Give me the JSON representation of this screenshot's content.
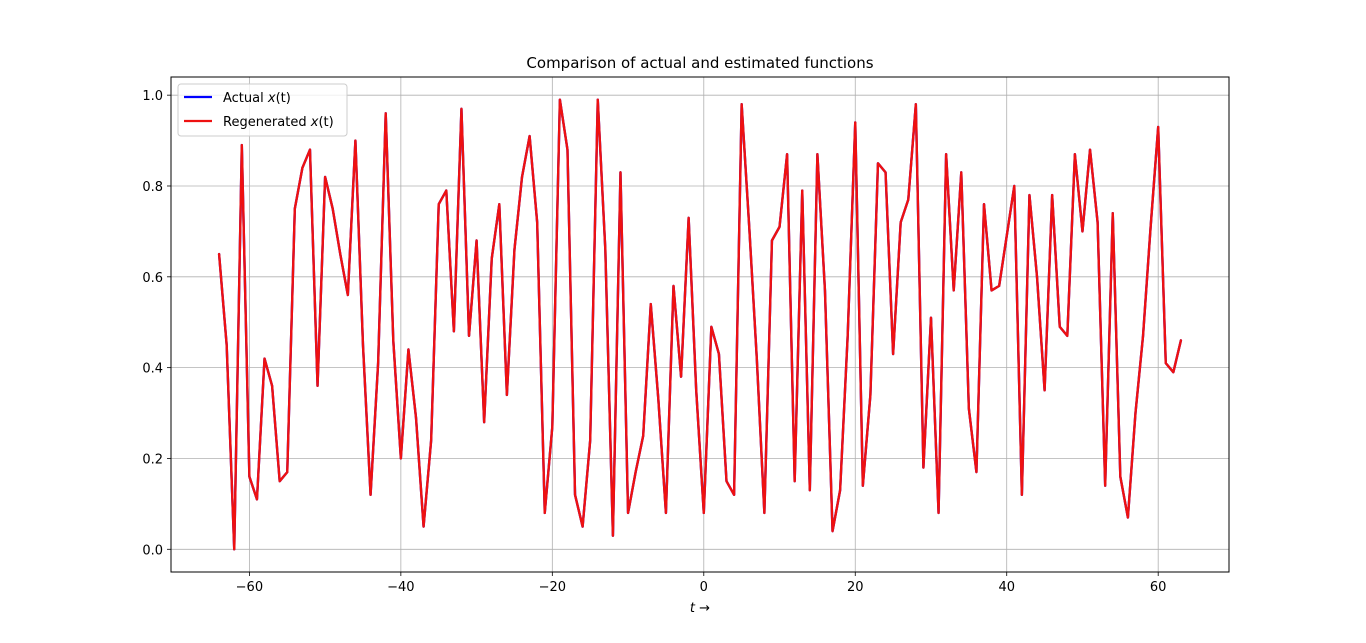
{
  "chart_data": {
    "type": "line",
    "title": "Comparison of actual and estimated functions",
    "xlabel": "t →",
    "ylabel": "",
    "xlim": [
      -70.35,
      69.35
    ],
    "ylim": [
      -0.05,
      1.04
    ],
    "xticks": [
      -60,
      -40,
      -20,
      0,
      20,
      40,
      60
    ],
    "xtick_labels": [
      "−60",
      "−40",
      "−20",
      "0",
      "20",
      "40",
      "60"
    ],
    "yticks": [
      0.0,
      0.2,
      0.4,
      0.6,
      0.8,
      1.0
    ],
    "ytick_labels": [
      "0.0",
      "0.2",
      "0.4",
      "0.6",
      "0.8",
      "1.0"
    ],
    "grid": true,
    "legend_position": "top-left",
    "x": [
      -64,
      -63,
      -62,
      -61,
      -60,
      -59,
      -58,
      -57,
      -56,
      -55,
      -54,
      -53,
      -52,
      -51,
      -50,
      -49,
      -48,
      -47,
      -46,
      -45,
      -44,
      -43,
      -42,
      -41,
      -40,
      -39,
      -38,
      -37,
      -36,
      -35,
      -34,
      -33,
      -32,
      -31,
      -30,
      -29,
      -28,
      -27,
      -26,
      -25,
      -24,
      -23,
      -22,
      -21,
      -20,
      -19,
      -18,
      -17,
      -16,
      -15,
      -14,
      -13,
      -12,
      -11,
      -10,
      -9,
      -8,
      -7,
      -6,
      -5,
      -4,
      -3,
      -2,
      -1,
      0,
      1,
      2,
      3,
      4,
      5,
      6,
      7,
      8,
      9,
      10,
      11,
      12,
      13,
      14,
      15,
      16,
      17,
      18,
      19,
      20,
      21,
      22,
      23,
      24,
      25,
      26,
      27,
      28,
      29,
      30,
      31,
      32,
      33,
      34,
      35,
      36,
      37,
      38,
      39,
      40,
      41,
      42,
      43,
      44,
      45,
      46,
      47,
      48,
      49,
      50,
      51,
      52,
      53,
      54,
      55,
      56,
      57,
      58,
      59,
      60,
      61,
      62,
      63
    ],
    "series": [
      {
        "name": "Actual $x(t)$",
        "label_main": "Actual ",
        "label_var": "x",
        "label_arg": "(t)",
        "color": "#0000ff",
        "values": [
          0.65,
          0.45,
          0.0,
          0.89,
          0.16,
          0.11,
          0.42,
          0.36,
          0.15,
          0.17,
          0.75,
          0.84,
          0.88,
          0.36,
          0.82,
          0.75,
          0.65,
          0.56,
          0.9,
          0.45,
          0.12,
          0.41,
          0.96,
          0.46,
          0.2,
          0.44,
          0.29,
          0.05,
          0.24,
          0.76,
          0.79,
          0.48,
          0.97,
          0.47,
          0.68,
          0.28,
          0.64,
          0.76,
          0.34,
          0.66,
          0.82,
          0.91,
          0.72,
          0.08,
          0.27,
          0.99,
          0.88,
          0.12,
          0.05,
          0.24,
          0.99,
          0.66,
          0.03,
          0.83,
          0.08,
          0.17,
          0.25,
          0.54,
          0.33,
          0.08,
          0.58,
          0.38,
          0.73,
          0.35,
          0.08,
          0.49,
          0.43,
          0.15,
          0.12,
          0.98,
          0.71,
          0.42,
          0.08,
          0.68,
          0.71,
          0.87,
          0.15,
          0.79,
          0.13,
          0.87,
          0.57,
          0.04,
          0.13,
          0.47,
          0.94,
          0.14,
          0.34,
          0.85,
          0.83,
          0.43,
          0.72,
          0.77,
          0.98,
          0.18,
          0.51,
          0.08,
          0.87,
          0.57,
          0.83,
          0.31,
          0.17,
          0.76,
          0.57,
          0.58,
          0.69,
          0.8,
          0.12,
          0.78,
          0.6,
          0.35,
          0.78,
          0.49,
          0.47,
          0.87,
          0.7,
          0.88,
          0.72,
          0.14,
          0.74,
          0.16,
          0.07,
          0.3,
          0.47,
          0.71,
          0.93,
          0.41,
          0.39,
          0.46
        ]
      },
      {
        "name": "Regenerated $x(t)$",
        "label_main": "Regenerated ",
        "label_var": "x",
        "label_arg": "(t)",
        "color": "#ee1111",
        "values": [
          0.65,
          0.45,
          0.0,
          0.89,
          0.16,
          0.11,
          0.42,
          0.36,
          0.15,
          0.17,
          0.75,
          0.84,
          0.88,
          0.36,
          0.82,
          0.75,
          0.65,
          0.56,
          0.9,
          0.45,
          0.12,
          0.41,
          0.96,
          0.46,
          0.2,
          0.44,
          0.29,
          0.05,
          0.24,
          0.76,
          0.79,
          0.48,
          0.97,
          0.47,
          0.68,
          0.28,
          0.64,
          0.76,
          0.34,
          0.66,
          0.82,
          0.91,
          0.72,
          0.08,
          0.27,
          0.99,
          0.88,
          0.12,
          0.05,
          0.24,
          0.99,
          0.66,
          0.03,
          0.83,
          0.08,
          0.17,
          0.25,
          0.54,
          0.33,
          0.08,
          0.58,
          0.38,
          0.73,
          0.35,
          0.08,
          0.49,
          0.43,
          0.15,
          0.12,
          0.98,
          0.71,
          0.42,
          0.08,
          0.68,
          0.71,
          0.87,
          0.15,
          0.79,
          0.13,
          0.87,
          0.57,
          0.04,
          0.13,
          0.47,
          0.94,
          0.14,
          0.34,
          0.85,
          0.83,
          0.43,
          0.72,
          0.77,
          0.98,
          0.18,
          0.51,
          0.08,
          0.87,
          0.57,
          0.83,
          0.31,
          0.17,
          0.76,
          0.57,
          0.58,
          0.69,
          0.8,
          0.12,
          0.78,
          0.6,
          0.35,
          0.78,
          0.49,
          0.47,
          0.87,
          0.7,
          0.88,
          0.72,
          0.14,
          0.74,
          0.16,
          0.07,
          0.3,
          0.47,
          0.71,
          0.93,
          0.41,
          0.39,
          0.46
        ]
      }
    ]
  }
}
